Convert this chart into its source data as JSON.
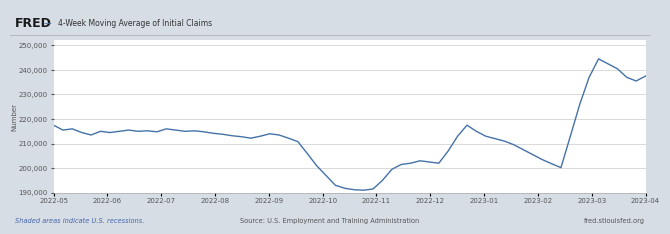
{
  "title": "4-Week Moving Average of Initial Claims",
  "ylabel": "Number",
  "background_color": "#d6dde5",
  "plot_bg_color": "#ffffff",
  "line_color": "#4472a8",
  "line_width": 1.0,
  "ylim": [
    190000,
    252000
  ],
  "yticks": [
    190000,
    200000,
    210000,
    220000,
    230000,
    240000,
    250000
  ],
  "xtick_labels": [
    "2022-05",
    "2022-06",
    "2022-07",
    "2022-08",
    "2022-09",
    "2022-10",
    "2022-11",
    "2022-12",
    "2023-01",
    "2023-02",
    "2023-03",
    "2023-04"
  ],
  "footer_left": "Shaded areas indicate U.S. recessions.",
  "footer_center": "Source: U.S. Employment and Training Administration",
  "footer_right": "fred.stlouisfed.org",
  "series": [
    217500,
    215500,
    216000,
    214500,
    213500,
    215000,
    214500,
    215000,
    215500,
    215000,
    215200,
    214800,
    216000,
    215500,
    215000,
    215200,
    214800,
    214200,
    213800,
    213200,
    212800,
    212200,
    213000,
    214000,
    213500,
    212200,
    210800,
    206000,
    201000,
    197000,
    193000,
    191800,
    191200,
    191000,
    191500,
    195000,
    199500,
    201500,
    202000,
    203000,
    202500,
    202000,
    207000,
    213000,
    217500,
    215000,
    213000,
    212000,
    211000,
    209500,
    207500,
    205500,
    203500,
    201800,
    200200,
    213000,
    226000,
    237000,
    244500,
    242500,
    240500,
    237000,
    235500,
    237500
  ]
}
